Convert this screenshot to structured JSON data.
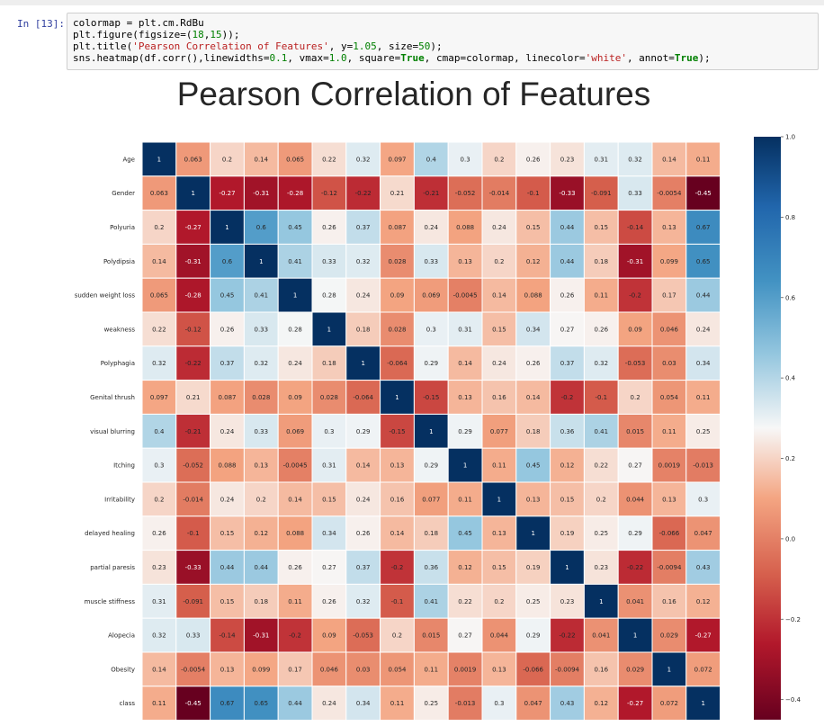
{
  "notebook": {
    "prompt": "In [13]:",
    "code_lines": [
      [
        {
          "t": "colormap = plt.cm.RdBu"
        }
      ],
      [
        {
          "t": "plt.figure(figsize=("
        },
        {
          "t": "18",
          "c": "num"
        },
        {
          "t": ","
        },
        {
          "t": "15",
          "c": "num"
        },
        {
          "t": "));"
        }
      ],
      [
        {
          "t": "plt.title("
        },
        {
          "t": "'Pearson Correlation of Features'",
          "c": "str"
        },
        {
          "t": ", y="
        },
        {
          "t": "1.05",
          "c": "num"
        },
        {
          "t": ", size="
        },
        {
          "t": "50",
          "c": "num"
        },
        {
          "t": ");"
        }
      ],
      [
        {
          "t": "sns.heatmap(df.corr(),linewidths="
        },
        {
          "t": "0.1",
          "c": "num"
        },
        {
          "t": ", vmax="
        },
        {
          "t": "1.0",
          "c": "num"
        },
        {
          "t": ", square="
        },
        {
          "t": "True",
          "c": "kw"
        },
        {
          "t": ", cmap=colormap, linecolor="
        },
        {
          "t": "'white'",
          "c": "str"
        },
        {
          "t": ", annot="
        },
        {
          "t": "True",
          "c": "kw"
        },
        {
          "t": ");"
        }
      ]
    ]
  },
  "chart_data": {
    "type": "heatmap",
    "title": "Pearson Correlation of Features",
    "colormap": "RdBu",
    "vmin": -0.45,
    "vmax": 1.0,
    "linecolor": "#ffffff",
    "labels": [
      "Age",
      "Gender",
      "Polyuria",
      "Polydipsia",
      "sudden weight loss",
      "weakness",
      "Polyphagia",
      "Genital thrush",
      "visual blurring",
      "Itching",
      "Irritability",
      "delayed healing",
      "partial paresis",
      "muscle stiffness",
      "Alopecia",
      "Obesity",
      "class"
    ],
    "values": [
      [
        1,
        0.063,
        0.2,
        0.14,
        0.065,
        0.22,
        0.32,
        0.097,
        0.4,
        0.3,
        0.2,
        0.26,
        0.23,
        0.31,
        0.32,
        0.14,
        0.11
      ],
      [
        0.063,
        1,
        -0.27,
        -0.31,
        -0.28,
        -0.12,
        -0.22,
        0.21,
        -0.21,
        -0.052,
        -0.014,
        -0.1,
        -0.33,
        -0.091,
        0.33,
        -0.0054,
        -0.45
      ],
      [
        0.2,
        -0.27,
        1,
        0.6,
        0.45,
        0.26,
        0.37,
        0.087,
        0.24,
        0.088,
        0.24,
        0.15,
        0.44,
        0.15,
        -0.14,
        0.13,
        0.67
      ],
      [
        0.14,
        -0.31,
        0.6,
        1,
        0.41,
        0.33,
        0.32,
        0.028,
        0.33,
        0.13,
        0.2,
        0.12,
        0.44,
        0.18,
        -0.31,
        0.099,
        0.65
      ],
      [
        0.065,
        -0.28,
        0.45,
        0.41,
        1,
        0.28,
        0.24,
        0.09,
        0.069,
        -0.0045,
        0.14,
        0.088,
        0.26,
        0.11,
        -0.2,
        0.17,
        0.44
      ],
      [
        0.22,
        -0.12,
        0.26,
        0.33,
        0.28,
        1,
        0.18,
        0.028,
        0.3,
        0.31,
        0.15,
        0.34,
        0.27,
        0.26,
        0.09,
        0.046,
        0.24
      ],
      [
        0.32,
        -0.22,
        0.37,
        0.32,
        0.24,
        0.18,
        1,
        -0.064,
        0.29,
        0.14,
        0.24,
        0.26,
        0.37,
        0.32,
        -0.053,
        0.03,
        0.34
      ],
      [
        0.097,
        0.21,
        0.087,
        0.028,
        0.09,
        0.028,
        -0.064,
        1,
        -0.15,
        0.13,
        0.16,
        0.14,
        -0.2,
        -0.1,
        0.2,
        0.054,
        0.11
      ],
      [
        0.4,
        -0.21,
        0.24,
        0.33,
        0.069,
        0.3,
        0.29,
        -0.15,
        1,
        0.29,
        0.077,
        0.18,
        0.36,
        0.41,
        0.015,
        0.11,
        0.25
      ],
      [
        0.3,
        -0.052,
        0.088,
        0.13,
        -0.0045,
        0.31,
        0.14,
        0.13,
        0.29,
        1,
        0.11,
        0.45,
        0.12,
        0.22,
        0.27,
        0.0019,
        -0.013
      ],
      [
        0.2,
        -0.014,
        0.24,
        0.2,
        0.14,
        0.15,
        0.24,
        0.16,
        0.077,
        0.11,
        1,
        0.13,
        0.15,
        0.2,
        0.044,
        0.13,
        0.3
      ],
      [
        0.26,
        -0.1,
        0.15,
        0.12,
        0.088,
        0.34,
        0.26,
        0.14,
        0.18,
        0.45,
        0.13,
        1,
        0.19,
        0.25,
        0.29,
        -0.066,
        0.047
      ],
      [
        0.23,
        -0.33,
        0.44,
        0.44,
        0.26,
        0.27,
        0.37,
        -0.2,
        0.36,
        0.12,
        0.15,
        0.19,
        1,
        0.23,
        -0.22,
        -0.0094,
        0.43
      ],
      [
        0.31,
        -0.091,
        0.15,
        0.18,
        0.11,
        0.26,
        0.32,
        -0.1,
        0.41,
        0.22,
        0.2,
        0.25,
        0.23,
        1,
        0.041,
        0.16,
        0.12
      ],
      [
        0.32,
        0.33,
        -0.14,
        -0.31,
        -0.2,
        0.09,
        -0.053,
        0.2,
        0.015,
        0.27,
        0.044,
        0.29,
        -0.22,
        0.041,
        1,
        0.029,
        -0.27
      ],
      [
        0.14,
        -0.0054,
        0.13,
        0.099,
        0.17,
        0.046,
        0.03,
        0.054,
        0.11,
        0.0019,
        0.13,
        -0.066,
        -0.0094,
        0.16,
        0.029,
        1,
        0.072
      ],
      [
        0.11,
        -0.45,
        0.67,
        0.65,
        0.44,
        0.24,
        0.34,
        0.11,
        0.25,
        -0.013,
        0.3,
        0.047,
        0.43,
        0.12,
        -0.27,
        0.072,
        1
      ]
    ],
    "colorbar_ticks": [
      "1.0",
      "0.8",
      "0.6",
      "0.4",
      "0.2",
      "0.0",
      "−0.2",
      "−0.4"
    ],
    "colorbar_tick_values": [
      1.0,
      0.8,
      0.6,
      0.4,
      0.2,
      0.0,
      -0.2,
      -0.4
    ]
  }
}
